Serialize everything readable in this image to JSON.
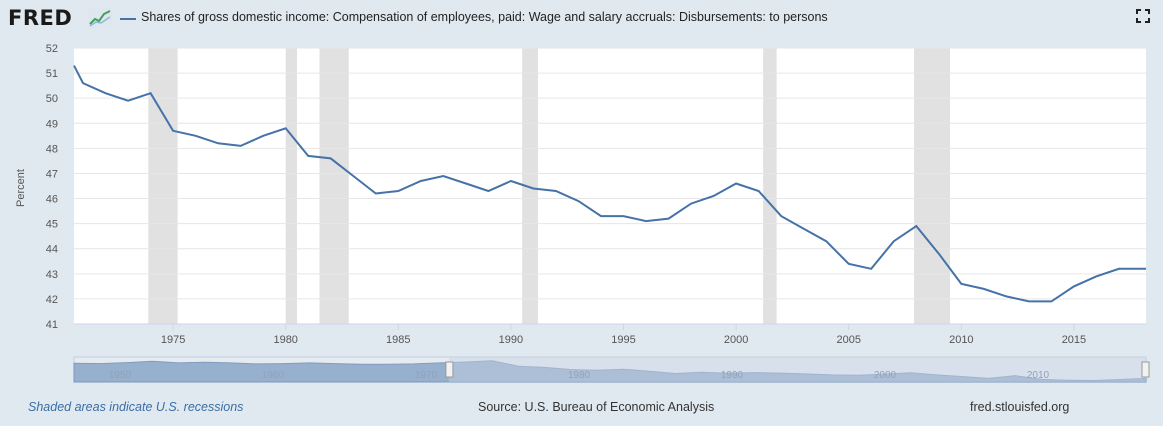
{
  "header": {
    "logo_text": "FRED",
    "logo_icon": "chart-line-icon",
    "legend_label": "Shares of gross domestic income: Compensation of employees, paid: Wage and salary accruals: Disbursements: to persons",
    "fullscreen_icon": "fullscreen-icon"
  },
  "footer": {
    "recession_note": "Shaded areas indicate U.S. recessions",
    "source": "Source: U.S. Bureau of Economic Analysis",
    "site": "fred.stlouisfed.org"
  },
  "colors": {
    "line": "#4572a7",
    "recession": "#e1e1e1",
    "background": "#e1e9f0",
    "plot_bg": "#ffffff",
    "grid": "#e6e6e6",
    "navigator_fill": "#8aa6c8",
    "navigator_band": "#c8d3e3"
  },
  "chart_data": {
    "type": "line",
    "ylabel": "Percent",
    "xlabel": "",
    "ylim": [
      41,
      52
    ],
    "y_ticks": [
      41,
      42,
      43,
      44,
      45,
      46,
      47,
      48,
      49,
      50,
      51,
      52
    ],
    "x_ticks": [
      1975,
      1980,
      1985,
      1990,
      1995,
      2000,
      2005,
      2010,
      2015
    ],
    "xlim": [
      1970.6,
      2018.2
    ],
    "grid": true,
    "legend": "top-left",
    "series": [
      {
        "x": [
          1970.6,
          1971,
          1972,
          1973,
          1974,
          1975,
          1976,
          1977,
          1978,
          1979,
          1980,
          1981,
          1982,
          1983,
          1984,
          1985,
          1986,
          1987,
          1988,
          1989,
          1990,
          1991,
          1992,
          1993,
          1994,
          1995,
          1996,
          1997,
          1998,
          1999,
          2000,
          2001,
          2002,
          2003,
          2004,
          2005,
          2006,
          2007,
          2008,
          2009,
          2010,
          2011,
          2012,
          2013,
          2014,
          2015,
          2016,
          2017,
          2018.2
        ],
        "values": [
          51.3,
          50.6,
          50.2,
          49.9,
          50.2,
          48.7,
          48.5,
          48.2,
          48.1,
          48.5,
          48.8,
          47.7,
          47.6,
          46.9,
          46.2,
          46.3,
          46.7,
          46.9,
          46.6,
          46.3,
          46.7,
          46.4,
          46.3,
          45.9,
          45.3,
          45.3,
          45.1,
          45.2,
          45.8,
          46.1,
          46.6,
          46.3,
          45.3,
          44.8,
          44.3,
          43.4,
          43.2,
          44.3,
          44.9,
          43.8,
          42.6,
          42.4,
          42.1,
          41.9,
          41.9,
          42.5,
          42.9,
          43.2,
          43.2
        ]
      }
    ],
    "recessions": [
      [
        1973.9,
        1975.2
      ],
      [
        1980.0,
        1980.5
      ],
      [
        1981.5,
        1982.8
      ],
      [
        1990.5,
        1991.2
      ],
      [
        2001.2,
        2001.8
      ],
      [
        2007.9,
        2009.5
      ]
    ],
    "navigator": {
      "ticks": [
        "1950",
        "1960",
        "1970",
        "1980",
        "1990",
        "2000",
        "2010"
      ],
      "xlim": [
        1945,
        2018.2
      ],
      "selected": [
        1970.6,
        2018.2
      ],
      "values": [
        52.4,
        52.2,
        52.8,
        53.6,
        52.6,
        53.0,
        52.6,
        52.0,
        52.2,
        52.6,
        52.2,
        51.8,
        51.8,
        52.0,
        52.6,
        53.2,
        53.9,
        50.6,
        49.9,
        48.6,
        48.1,
        48.8,
        47.6,
        46.2,
        46.9,
        46.3,
        46.7,
        46.4,
        45.9,
        45.3,
        45.1,
        45.8,
        46.6,
        45.3,
        44.3,
        43.2,
        44.9,
        42.6,
        42.1,
        41.9,
        42.5,
        43.2
      ]
    }
  }
}
